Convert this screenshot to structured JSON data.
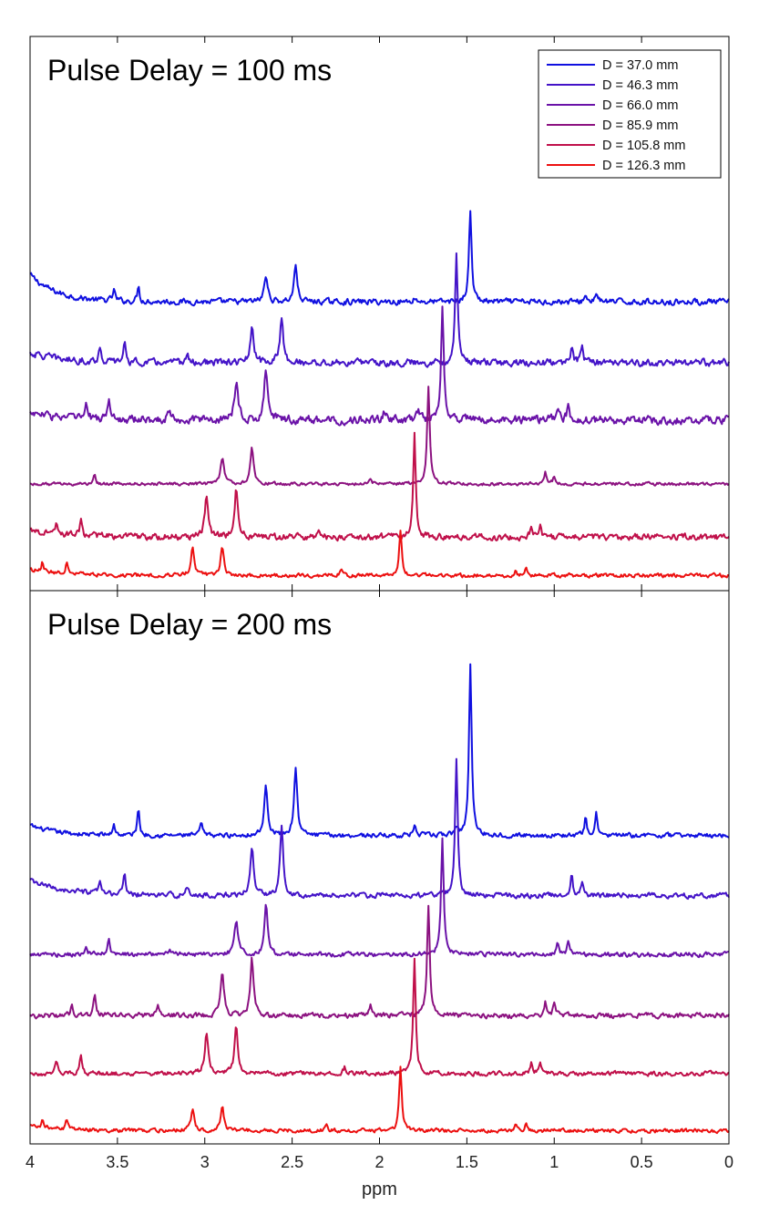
{
  "chart_data": {
    "type": "line",
    "xlabel": "ppm",
    "xlim": [
      4,
      0
    ],
    "x_reversed": true,
    "xticks": [
      4,
      3.5,
      3,
      2.5,
      2,
      1.5,
      1,
      0.5,
      0
    ],
    "xtick_labels": [
      "4",
      "3.5",
      "3",
      "2.5",
      "2",
      "1.5",
      "1",
      "0.5",
      "0"
    ],
    "y_description": "stacked spectra, arbitrary intensity, no y axis shown",
    "legend_position": "top-right",
    "legend": [
      {
        "label": "D = 37.0 mm",
        "color": "#1010e0"
      },
      {
        "label": "D = 46.3 mm",
        "color": "#4414c8"
      },
      {
        "label": "D = 66.0 mm",
        "color": "#6a12a8"
      },
      {
        "label": "D = 85.9 mm",
        "color": "#8c1280"
      },
      {
        "label": "D = 105.8 mm",
        "color": "#c0104a"
      },
      {
        "label": "D = 126.3 mm",
        "color": "#ec1010"
      }
    ],
    "panels": [
      {
        "title": "Pulse Delay = 100 ms",
        "series": [
          {
            "name": "D = 37.0 mm",
            "baseline": 5.72,
            "noise": 0.09,
            "rise": 0.55,
            "riseWidth": 0.15,
            "peaks": [
              [
                1.48,
                1.85,
                0.009
              ],
              [
                2.48,
                0.75,
                0.011
              ],
              [
                2.65,
                0.52,
                0.012
              ],
              [
                3.38,
                0.32,
                0.007
              ],
              [
                3.52,
                0.22,
                0.008
              ],
              [
                0.76,
                0.2,
                0.008
              ],
              [
                0.82,
                0.14,
                0.008
              ],
              [
                1.8,
                0.08,
                0.01
              ]
            ]
          },
          {
            "name": "D = 46.3 mm",
            "baseline": 4.48,
            "noise": 0.11,
            "rise": 0.2,
            "riseWidth": 0.2,
            "peaks": [
              [
                1.56,
                2.2,
                0.009
              ],
              [
                2.56,
                0.95,
                0.011
              ],
              [
                2.73,
                0.68,
                0.012
              ],
              [
                3.46,
                0.45,
                0.007
              ],
              [
                3.6,
                0.3,
                0.008
              ],
              [
                0.84,
                0.42,
                0.008
              ],
              [
                0.9,
                0.38,
                0.008
              ],
              [
                3.1,
                0.15,
                0.01
              ],
              [
                2.05,
                0.1,
                0.01
              ]
            ]
          },
          {
            "name": "D = 66.0 mm",
            "baseline": 3.32,
            "noise": 0.13,
            "rise": 0.15,
            "riseWidth": 0.2,
            "peaks": [
              [
                1.64,
                2.28,
                0.009
              ],
              [
                2.65,
                1.06,
                0.011
              ],
              [
                2.82,
                0.78,
                0.012
              ],
              [
                3.55,
                0.46,
                0.007
              ],
              [
                3.68,
                0.3,
                0.008
              ],
              [
                0.92,
                0.26,
                0.008
              ],
              [
                0.98,
                0.3,
                0.008
              ],
              [
                3.2,
                0.22,
                0.01
              ],
              [
                1.78,
                0.18,
                0.01
              ],
              [
                1.97,
                0.18,
                0.01
              ]
            ]
          },
          {
            "name": "D = 85.9 mm",
            "baseline": 2.02,
            "noise": 0.05,
            "rise": 0,
            "riseWidth": 0.2,
            "peaks": [
              [
                1.72,
                1.96,
                0.009
              ],
              [
                2.73,
                0.76,
                0.011
              ],
              [
                2.9,
                0.52,
                0.012
              ],
              [
                3.63,
                0.2,
                0.007
              ],
              [
                1.0,
                0.16,
                0.008
              ],
              [
                1.05,
                0.22,
                0.008
              ],
              [
                2.05,
                0.1,
                0.01
              ]
            ]
          },
          {
            "name": "D = 105.8 mm",
            "baseline": 0.94,
            "noise": 0.1,
            "rise": 0.15,
            "riseWidth": 0.2,
            "peaks": [
              [
                1.8,
                2.1,
                0.009
              ],
              [
                2.82,
                0.98,
                0.011
              ],
              [
                2.99,
                0.86,
                0.012
              ],
              [
                3.71,
                0.34,
                0.007
              ],
              [
                3.85,
                0.24,
                0.008
              ],
              [
                1.08,
                0.26,
                0.008
              ],
              [
                1.13,
                0.24,
                0.008
              ],
              [
                2.35,
                0.15,
                0.01
              ]
            ]
          },
          {
            "name": "D = 126.3 mm",
            "baseline": 0.16,
            "noise": 0.06,
            "rise": 0.12,
            "riseWidth": 0.2,
            "peaks": [
              [
                1.88,
                0.92,
                0.009
              ],
              [
                2.9,
                0.6,
                0.011
              ],
              [
                3.07,
                0.56,
                0.012
              ],
              [
                3.79,
                0.22,
                0.007
              ],
              [
                3.93,
                0.18,
                0.008
              ],
              [
                1.16,
                0.14,
                0.008
              ],
              [
                1.22,
                0.1,
                0.008
              ],
              [
                2.22,
                0.1,
                0.01
              ]
            ]
          }
        ]
      },
      {
        "title": "Pulse Delay = 200 ms",
        "series": [
          {
            "name": "D = 37.0 mm",
            "baseline": 6.12,
            "noise": 0.07,
            "rise": 0.2,
            "riseWidth": 0.15,
            "peaks": [
              [
                1.48,
                3.52,
                0.009
              ],
              [
                2.48,
                1.38,
                0.011
              ],
              [
                2.65,
                0.98,
                0.012
              ],
              [
                3.38,
                0.58,
                0.007
              ],
              [
                3.52,
                0.22,
                0.008
              ],
              [
                3.02,
                0.26,
                0.008
              ],
              [
                0.76,
                0.44,
                0.008
              ],
              [
                0.82,
                0.36,
                0.008
              ],
              [
                1.8,
                0.18,
                0.01
              ],
              [
                1.56,
                0.16,
                0.01
              ]
            ]
          },
          {
            "name": "D = 46.3 mm",
            "baseline": 4.9,
            "noise": 0.08,
            "rise": 0.3,
            "riseWidth": 0.2,
            "peaks": [
              [
                1.56,
                2.72,
                0.009
              ],
              [
                2.56,
                1.42,
                0.011
              ],
              [
                2.73,
                0.96,
                0.012
              ],
              [
                3.46,
                0.48,
                0.007
              ],
              [
                3.6,
                0.22,
                0.008
              ],
              [
                0.84,
                0.28,
                0.008
              ],
              [
                0.9,
                0.44,
                0.008
              ],
              [
                3.1,
                0.14,
                0.01
              ]
            ]
          },
          {
            "name": "D = 66.0 mm",
            "baseline": 3.7,
            "noise": 0.07,
            "rise": 0,
            "riseWidth": 0.2,
            "peaks": [
              [
                1.64,
                2.36,
                0.009
              ],
              [
                2.65,
                1.02,
                0.011
              ],
              [
                2.82,
                0.68,
                0.012
              ],
              [
                3.55,
                0.3,
                0.007
              ],
              [
                3.68,
                0.18,
                0.008
              ],
              [
                0.92,
                0.26,
                0.008
              ],
              [
                0.98,
                0.26,
                0.008
              ],
              [
                3.2,
                0.1,
                0.01
              ]
            ]
          },
          {
            "name": "D = 85.9 mm",
            "baseline": 2.46,
            "noise": 0.08,
            "rise": 0,
            "riseWidth": 0.2,
            "peaks": [
              [
                1.72,
                2.24,
                0.009
              ],
              [
                2.73,
                1.16,
                0.011
              ],
              [
                2.9,
                0.86,
                0.012
              ],
              [
                3.63,
                0.48,
                0.007
              ],
              [
                3.76,
                0.24,
                0.008
              ],
              [
                3.27,
                0.2,
                0.01
              ],
              [
                1.0,
                0.3,
                0.008
              ],
              [
                1.05,
                0.26,
                0.008
              ],
              [
                2.05,
                0.18,
                0.01
              ]
            ]
          },
          {
            "name": "D = 105.8 mm",
            "baseline": 1.28,
            "noise": 0.07,
            "rise": 0,
            "riseWidth": 0.2,
            "peaks": [
              [
                1.8,
                2.32,
                0.009
              ],
              [
                2.82,
                0.96,
                0.011
              ],
              [
                2.99,
                0.84,
                0.012
              ],
              [
                3.71,
                0.44,
                0.007
              ],
              [
                3.85,
                0.22,
                0.008
              ],
              [
                1.08,
                0.18,
                0.008
              ],
              [
                1.13,
                0.26,
                0.008
              ],
              [
                2.2,
                0.12,
                0.01
              ]
            ]
          },
          {
            "name": "D = 126.3 mm",
            "baseline": 0.12,
            "noise": 0.06,
            "rise": 0.1,
            "riseWidth": 0.2,
            "peaks": [
              [
                1.88,
                1.26,
                0.009
              ],
              [
                2.9,
                0.48,
                0.011
              ],
              [
                3.07,
                0.4,
                0.012
              ],
              [
                3.79,
                0.18,
                0.007
              ],
              [
                3.93,
                0.14,
                0.008
              ],
              [
                1.16,
                0.18,
                0.008
              ],
              [
                1.22,
                0.14,
                0.008
              ],
              [
                2.3,
                0.1,
                0.01
              ]
            ]
          }
        ]
      }
    ]
  }
}
